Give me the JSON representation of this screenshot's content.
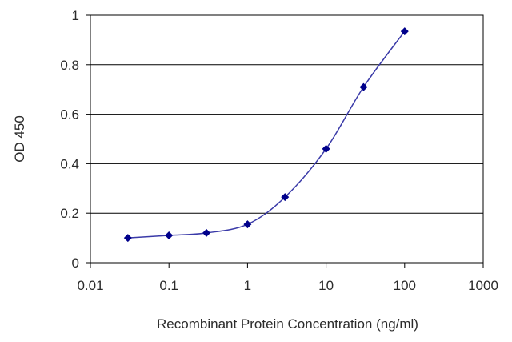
{
  "chart_data": {
    "type": "line",
    "xscale": "log",
    "xlabel": "Recombinant Protein Concentration (ng/ml)",
    "ylabel": "OD 450",
    "xlim": [
      0.01,
      1000
    ],
    "ylim": [
      0,
      1
    ],
    "xticks": [
      "0.01",
      "0.1",
      "1",
      "10",
      "100",
      "1000"
    ],
    "xtick_values": [
      0.01,
      0.1,
      1,
      10,
      100,
      1000
    ],
    "yticks": [
      "0",
      "0.2",
      "0.4",
      "0.6",
      "0.8",
      "1"
    ],
    "ytick_values": [
      0,
      0.2,
      0.4,
      0.6,
      0.8,
      1
    ],
    "grid": "horizontal",
    "colors": {
      "line": "#3a3aa8",
      "marker": "#00008b",
      "grid": "#000000",
      "frame": "#000000"
    },
    "series": [
      {
        "x": [
          0.03,
          0.1,
          0.3,
          1,
          3,
          10,
          30,
          100
        ],
        "y": [
          0.1,
          0.11,
          0.12,
          0.155,
          0.265,
          0.46,
          0.71,
          0.935
        ]
      }
    ]
  }
}
